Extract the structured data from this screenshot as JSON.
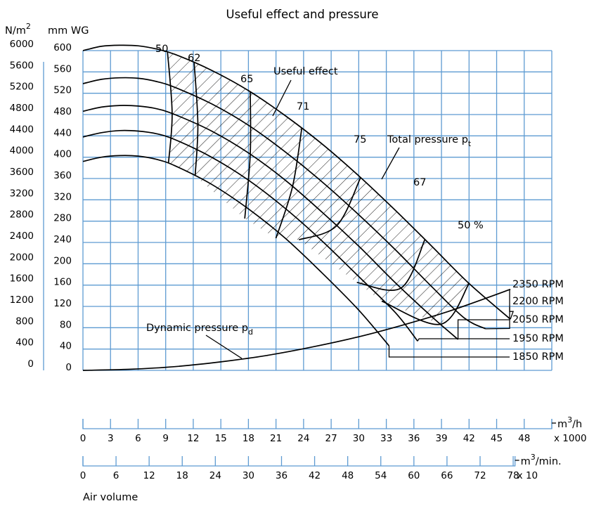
{
  "chart_data": {
    "type": "line",
    "title": "Useful effect and pressure",
    "ylabel_left_unit": "N/m",
    "ylabel_left_sup": "2",
    "ylabel_right_unit": "mm WG",
    "y_ticks_pa": [
      "6000",
      "5600",
      "5200",
      "4800",
      "4400",
      "4000",
      "3600",
      "3200",
      "2800",
      "2400",
      "2000",
      "1600",
      "1200",
      "800",
      "400",
      "0"
    ],
    "y_ticks_mm": [
      "600",
      "560",
      "520",
      "480",
      "440",
      "400",
      "360",
      "320",
      "280",
      "240",
      "200",
      "160",
      "120",
      "80",
      "40",
      "0"
    ],
    "ylim_mm": [
      0,
      600
    ],
    "xlim_m3h_x1000": [
      0,
      51
    ],
    "x1_ticks": [
      "0",
      "3",
      "6",
      "9",
      "12",
      "15",
      "18",
      "21",
      "24",
      "27",
      "30",
      "33",
      "36",
      "39",
      "42",
      "45",
      "48"
    ],
    "x1_unit_base": "m",
    "x1_unit_sup": "3",
    "x1_unit_tail": "/h",
    "x1_multiplier": "x 1000",
    "x2_ticks": [
      "0",
      "6",
      "12",
      "18",
      "24",
      "30",
      "36",
      "42",
      "48",
      "54",
      "60",
      "66",
      "72",
      "78"
    ],
    "x2_unit_base": "m",
    "x2_unit_sup": "3",
    "x2_unit_tail": "/min.",
    "x2_multiplier": "x 10",
    "xlabel": "Air volume",
    "series": [
      {
        "name": "2350 RPM",
        "x": [
          0,
          2,
          4,
          6,
          8,
          10,
          14,
          18,
          22,
          26,
          30,
          34,
          38,
          42,
          46.5
        ],
        "y": [
          600,
          608,
          610,
          609,
          603,
          593,
          563,
          525,
          478,
          425,
          365,
          300,
          232,
          163,
          96
        ]
      },
      {
        "name": "2200 RPM",
        "x": [
          0,
          2,
          4,
          6,
          8,
          10,
          14,
          18,
          22,
          26,
          30,
          34,
          38,
          41.5,
          43.8
        ],
        "y": [
          538,
          546,
          549,
          548,
          542,
          531,
          500,
          460,
          410,
          354,
          292,
          226,
          156,
          98,
          78
        ]
      },
      {
        "name": "2050 RPM",
        "x": [
          0,
          2,
          4,
          6,
          8,
          10,
          14,
          18,
          22,
          26,
          30,
          34,
          38,
          40.8
        ],
        "y": [
          486,
          494,
          497,
          496,
          491,
          480,
          449,
          408,
          357,
          297,
          233,
          164,
          100,
          58
        ]
      },
      {
        "name": "1950 RPM",
        "x": [
          0,
          2,
          4,
          6,
          8,
          10,
          14,
          18,
          22,
          26,
          30,
          34,
          36.4
        ],
        "y": [
          438,
          446,
          450,
          449,
          444,
          433,
          400,
          357,
          304,
          243,
          176,
          108,
          55
        ]
      },
      {
        "name": "1850 RPM",
        "x": [
          0,
          2,
          4,
          6,
          8,
          10,
          14,
          18,
          22,
          26,
          30,
          33.3
        ],
        "y": [
          392,
          400,
          403,
          402,
          396,
          384,
          349,
          303,
          248,
          183,
          113,
          46
        ]
      }
    ],
    "rpm_labels": [
      "2350 RPM",
      "2200 RPM",
      "2050 RPM",
      "1950 RPM",
      "1850 RPM"
    ],
    "dynamic_pressure": {
      "name": "Dynamic pressure",
      "sub": "d",
      "x": [
        0,
        5,
        10,
        15,
        20,
        25,
        30,
        35,
        40,
        46.5
      ],
      "y": [
        0,
        2,
        7,
        16,
        28,
        44,
        63,
        86,
        112,
        152
      ]
    },
    "efficiency_labels": [
      "50",
      "62",
      "65",
      "71",
      "75",
      "67",
      "50 %"
    ],
    "annotation_useful_effect": "Useful effect",
    "annotation_total_pressure": "Total pressure p",
    "annotation_total_pressure_sub": "t",
    "grid": true
  }
}
